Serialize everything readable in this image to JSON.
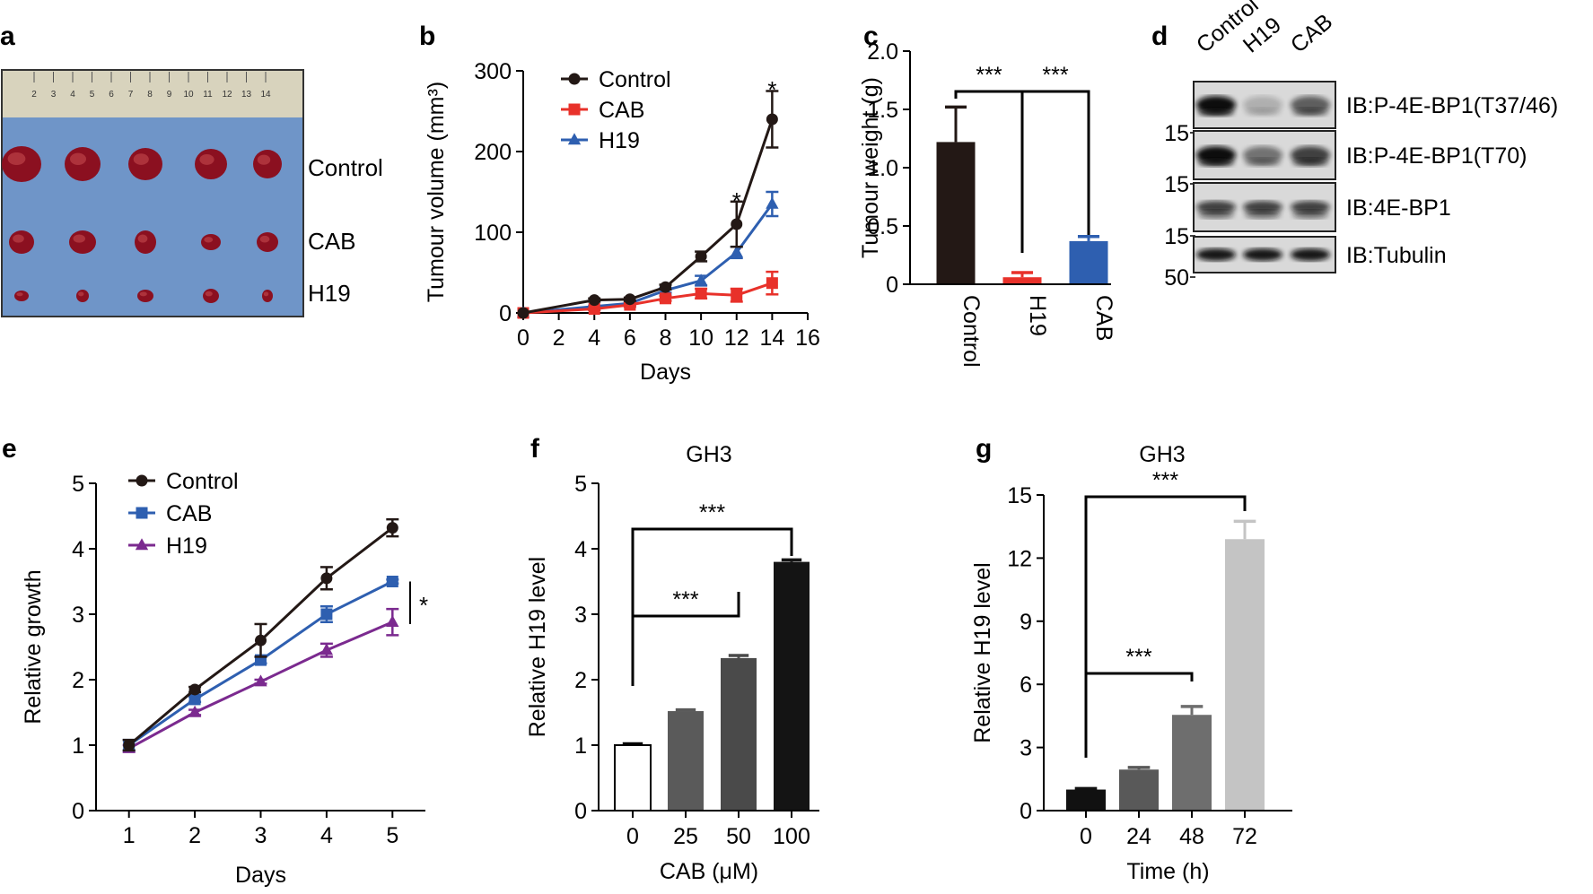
{
  "colors": {
    "control": "#231815",
    "cab": "#e8312a",
    "h19_b": "#2e5fb0",
    "h19_e": "#7b2a8f",
    "blot_bg": "#d9d9d9"
  },
  "panel_a": {
    "letter": "a",
    "labels": [
      "Control",
      "CAB",
      "H19"
    ],
    "ruler_marks": [
      "2",
      "3",
      "4",
      "5",
      "6",
      "7",
      "8",
      "9",
      "10",
      "11",
      "12",
      "13",
      "14"
    ]
  },
  "panel_d": {
    "letter": "d",
    "lanes": [
      "Control",
      "H19",
      "CAB"
    ],
    "blots": [
      {
        "label": "IB:P-4E-BP1(T37/46)",
        "marker": "15",
        "intensity": [
          1.0,
          0.2,
          0.6
        ]
      },
      {
        "label": "IB:P-4E-BP1(T70)",
        "marker": "15",
        "intensity": [
          1.0,
          0.5,
          0.75
        ]
      },
      {
        "label": "IB:4E-BP1",
        "marker": "15",
        "intensity": [
          0.75,
          0.75,
          0.75
        ]
      },
      {
        "label": "IB:Tubulin",
        "marker": "50",
        "intensity": [
          0.95,
          0.95,
          0.95
        ]
      }
    ]
  },
  "chart_data": [
    {
      "panel": "b",
      "type": "line",
      "title": "",
      "xlabel": "Days",
      "ylabel": "Tumour volume (mm³)",
      "xlim": [
        0,
        16
      ],
      "ylim": [
        0,
        300
      ],
      "xticks": [
        0,
        2,
        4,
        6,
        8,
        10,
        12,
        14,
        16
      ],
      "yticks": [
        0,
        100,
        200,
        300
      ],
      "x": [
        0,
        4,
        6,
        8,
        10,
        12,
        14
      ],
      "legend": "top-left",
      "series": [
        {
          "name": "Control",
          "color": "#231815",
          "marker": "circle",
          "values": [
            0,
            16,
            17,
            32,
            70,
            110,
            240
          ],
          "err": [
            0,
            2,
            2,
            3,
            6,
            28,
            35
          ]
        },
        {
          "name": "CAB",
          "color": "#e8312a",
          "marker": "square",
          "values": [
            0,
            5,
            10,
            18,
            24,
            22,
            37
          ],
          "err": [
            0,
            1,
            2,
            3,
            6,
            8,
            14
          ]
        },
        {
          "name": "H19",
          "color": "#2e5fb0",
          "marker": "triangle",
          "values": [
            0,
            8,
            12,
            28,
            40,
            75,
            135
          ],
          "err": [
            0,
            1,
            2,
            3,
            6,
            7,
            15
          ]
        }
      ],
      "annotations": [
        {
          "x": 12,
          "y": 140,
          "text": "*"
        },
        {
          "x": 14,
          "y": 278,
          "text": "*"
        }
      ]
    },
    {
      "panel": "c",
      "type": "bar",
      "xlabel": "",
      "ylabel": "Tumour weight (g)",
      "ylim": [
        0,
        2.0
      ],
      "yticks": [
        "0",
        "0.5",
        "1.0",
        "1.5",
        "2.0"
      ],
      "categories": [
        "Control",
        "H19",
        "CAB"
      ],
      "values": [
        1.22,
        0.06,
        0.37
      ],
      "err": [
        0.3,
        0.04,
        0.04
      ],
      "colors": [
        "#231815",
        "#e8312a",
        "#2e5fb0"
      ],
      "brackets": [
        {
          "from": 0,
          "to": 1,
          "text": "***"
        },
        {
          "from": 1,
          "to": 2,
          "text": "***"
        }
      ]
    },
    {
      "panel": "e",
      "type": "line",
      "xlabel": "Days",
      "ylabel": "Relative growth",
      "xlim": [
        0.5,
        5.5
      ],
      "ylim": [
        0,
        5
      ],
      "xticks": [
        1,
        2,
        3,
        4,
        5
      ],
      "yticks": [
        0,
        1,
        2,
        3,
        4,
        5
      ],
      "x": [
        1,
        2,
        3,
        4,
        5
      ],
      "legend": "top-left",
      "series": [
        {
          "name": "Control",
          "color": "#231815",
          "marker": "circle",
          "values": [
            1.0,
            1.85,
            2.6,
            3.55,
            4.32
          ],
          "err": [
            0.08,
            0.04,
            0.25,
            0.17,
            0.13
          ]
        },
        {
          "name": "CAB",
          "color": "#2e5fb0",
          "marker": "square",
          "values": [
            1.0,
            1.7,
            2.3,
            3.0,
            3.5
          ],
          "err": [
            0.08,
            0.04,
            0.05,
            0.12,
            0.03
          ]
        },
        {
          "name": "H19",
          "color": "#7b2a8f",
          "marker": "triangle",
          "values": [
            0.95,
            1.5,
            1.97,
            2.45,
            2.88
          ],
          "err": [
            0.05,
            0.04,
            0.03,
            0.1,
            0.2
          ]
        }
      ],
      "annotations": [
        {
          "text": "*"
        }
      ]
    },
    {
      "panel": "f",
      "type": "bar",
      "title": "GH3",
      "xlabel": "CAB (μM)",
      "ylabel": "Relative H19 level",
      "ylim": [
        0,
        5
      ],
      "yticks": [
        "0",
        "1",
        "2",
        "3",
        "4",
        "5"
      ],
      "categories": [
        "0",
        "25",
        "50",
        "100"
      ],
      "values": [
        1.0,
        1.52,
        2.33,
        3.8
      ],
      "err": [
        0.02,
        0.02,
        0.04,
        0.03
      ],
      "colors": [
        "#ffffff",
        "#5a5a5a",
        "#4a4a4a",
        "#141414"
      ],
      "brackets": [
        {
          "from": 0,
          "to": 2,
          "text": "***"
        },
        {
          "from": 0,
          "to": 3,
          "text": "***"
        }
      ]
    },
    {
      "panel": "g",
      "type": "bar",
      "title": "GH3",
      "xlabel": "Time (h)",
      "ylabel": "Relative H19 level",
      "ylim": [
        0,
        15
      ],
      "yticks": [
        "0",
        "3",
        "6",
        "9",
        "12",
        "15"
      ],
      "categories": [
        "0",
        "24",
        "48",
        "72"
      ],
      "values": [
        1.0,
        1.95,
        4.55,
        12.9
      ],
      "err": [
        0.05,
        0.1,
        0.4,
        0.85
      ],
      "colors": [
        "#111111",
        "#595959",
        "#6e6e6e",
        "#c4c4c4"
      ],
      "brackets": [
        {
          "from": 0,
          "to": 2,
          "text": "***"
        },
        {
          "from": 0,
          "to": 3,
          "text": "***"
        }
      ]
    }
  ]
}
